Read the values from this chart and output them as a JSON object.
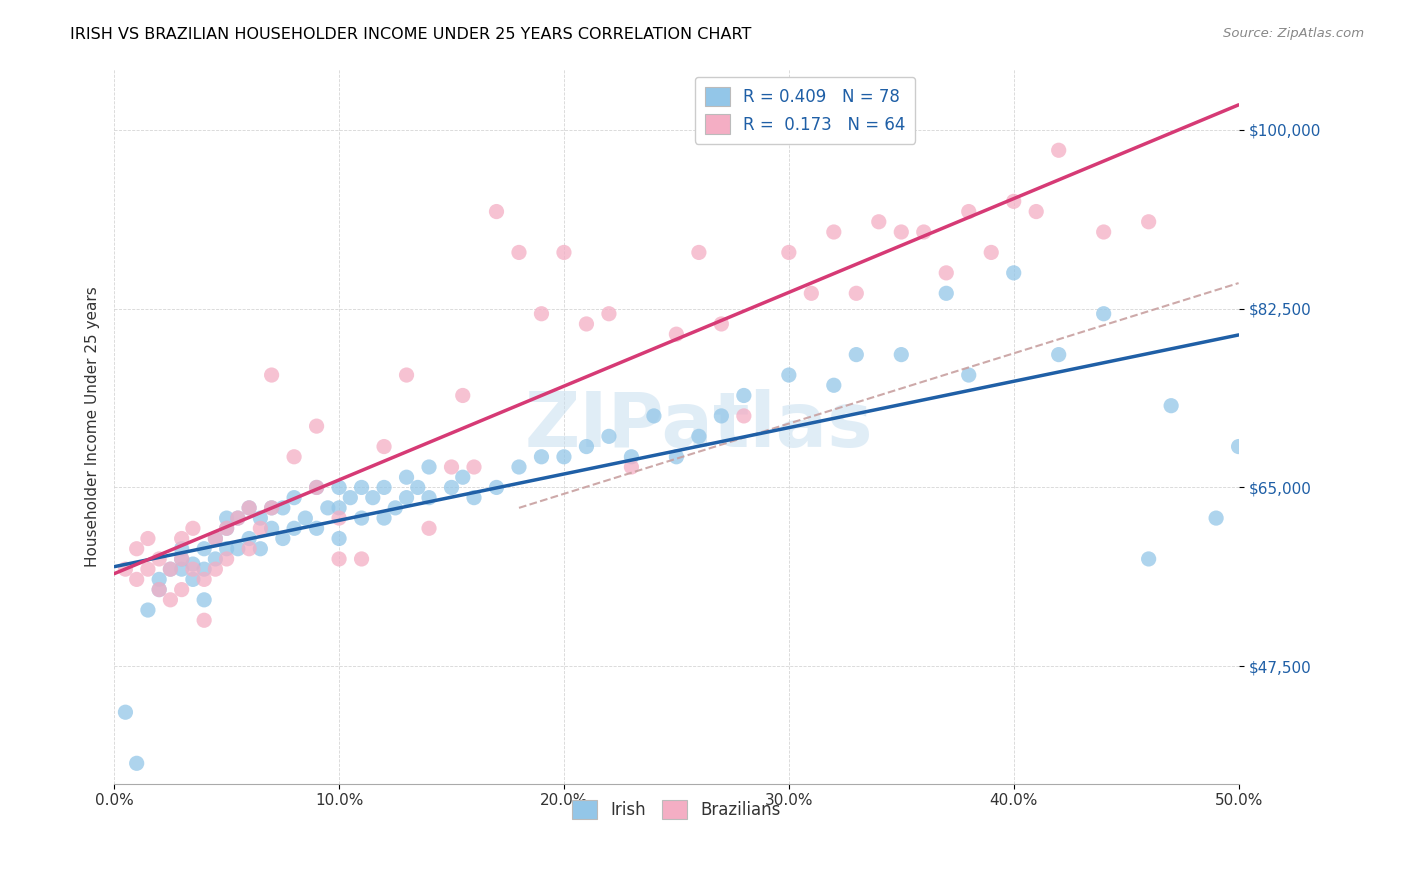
{
  "title": "IRISH VS BRAZILIAN HOUSEHOLDER INCOME UNDER 25 YEARS CORRELATION CHART",
  "source": "Source: ZipAtlas.com",
  "ylabel": "Householder Income Under 25 years",
  "ylabel_ticks_labels": [
    "$47,500",
    "$65,000",
    "$82,500",
    "$100,000"
  ],
  "ylabel_tick_vals": [
    47500,
    65000,
    82500,
    100000
  ],
  "xlim": [
    0.0,
    0.5
  ],
  "ylim": [
    36000,
    106000
  ],
  "irish_R": 0.409,
  "irish_N": 78,
  "brazilian_R": 0.173,
  "brazilian_N": 64,
  "irish_color": "#93c6e8",
  "brazilian_color": "#f4aec4",
  "irish_line_color": "#1f5fa6",
  "brazilian_line_color": "#d63a75",
  "dashed_line_color": "#c8a0a0",
  "watermark_color": "#c8dff0",
  "legend_label_irish": "Irish",
  "legend_label_brazilian": "Brazilians",
  "irish_x": [
    0.005,
    0.01,
    0.015,
    0.02,
    0.02,
    0.025,
    0.03,
    0.03,
    0.03,
    0.035,
    0.035,
    0.04,
    0.04,
    0.04,
    0.045,
    0.045,
    0.05,
    0.05,
    0.05,
    0.055,
    0.055,
    0.06,
    0.06,
    0.065,
    0.065,
    0.07,
    0.07,
    0.075,
    0.075,
    0.08,
    0.08,
    0.085,
    0.09,
    0.09,
    0.095,
    0.1,
    0.1,
    0.1,
    0.105,
    0.11,
    0.11,
    0.115,
    0.12,
    0.12,
    0.125,
    0.13,
    0.13,
    0.135,
    0.14,
    0.14,
    0.15,
    0.155,
    0.16,
    0.17,
    0.18,
    0.19,
    0.2,
    0.21,
    0.22,
    0.23,
    0.24,
    0.25,
    0.26,
    0.27,
    0.28,
    0.3,
    0.32,
    0.33,
    0.35,
    0.37,
    0.38,
    0.4,
    0.42,
    0.44,
    0.46,
    0.47,
    0.49,
    0.5
  ],
  "irish_y": [
    43000,
    38000,
    53000,
    55000,
    56000,
    57000,
    57000,
    58000,
    59000,
    57500,
    56000,
    54000,
    57000,
    59000,
    58000,
    60000,
    59000,
    61000,
    62000,
    59000,
    62000,
    60000,
    63000,
    59000,
    62000,
    61000,
    63000,
    60000,
    63000,
    61000,
    64000,
    62000,
    61000,
    65000,
    63000,
    60000,
    63000,
    65000,
    64000,
    62000,
    65000,
    64000,
    62000,
    65000,
    63000,
    64000,
    66000,
    65000,
    64000,
    67000,
    65000,
    66000,
    64000,
    65000,
    67000,
    68000,
    68000,
    69000,
    70000,
    68000,
    72000,
    68000,
    70000,
    72000,
    74000,
    76000,
    75000,
    78000,
    78000,
    84000,
    76000,
    86000,
    78000,
    82000,
    58000,
    73000,
    62000,
    69000
  ],
  "brazilian_x": [
    0.005,
    0.01,
    0.01,
    0.015,
    0.015,
    0.02,
    0.02,
    0.025,
    0.025,
    0.03,
    0.03,
    0.03,
    0.035,
    0.035,
    0.04,
    0.04,
    0.045,
    0.045,
    0.05,
    0.05,
    0.055,
    0.06,
    0.06,
    0.065,
    0.07,
    0.07,
    0.08,
    0.09,
    0.09,
    0.1,
    0.1,
    0.11,
    0.12,
    0.13,
    0.14,
    0.15,
    0.155,
    0.16,
    0.17,
    0.18,
    0.19,
    0.2,
    0.21,
    0.22,
    0.23,
    0.25,
    0.26,
    0.27,
    0.28,
    0.3,
    0.31,
    0.32,
    0.33,
    0.34,
    0.35,
    0.36,
    0.37,
    0.38,
    0.39,
    0.4,
    0.41,
    0.42,
    0.44,
    0.46
  ],
  "brazilian_y": [
    57000,
    56000,
    59000,
    57000,
    60000,
    55000,
    58000,
    54000,
    57000,
    55000,
    58000,
    60000,
    57000,
    61000,
    52000,
    56000,
    57000,
    60000,
    58000,
    61000,
    62000,
    59000,
    63000,
    61000,
    63000,
    76000,
    68000,
    65000,
    71000,
    58000,
    62000,
    58000,
    69000,
    76000,
    61000,
    67000,
    74000,
    67000,
    92000,
    88000,
    82000,
    88000,
    81000,
    82000,
    67000,
    80000,
    88000,
    81000,
    72000,
    88000,
    84000,
    90000,
    84000,
    91000,
    90000,
    90000,
    86000,
    92000,
    88000,
    93000,
    92000,
    98000,
    90000,
    91000
  ]
}
